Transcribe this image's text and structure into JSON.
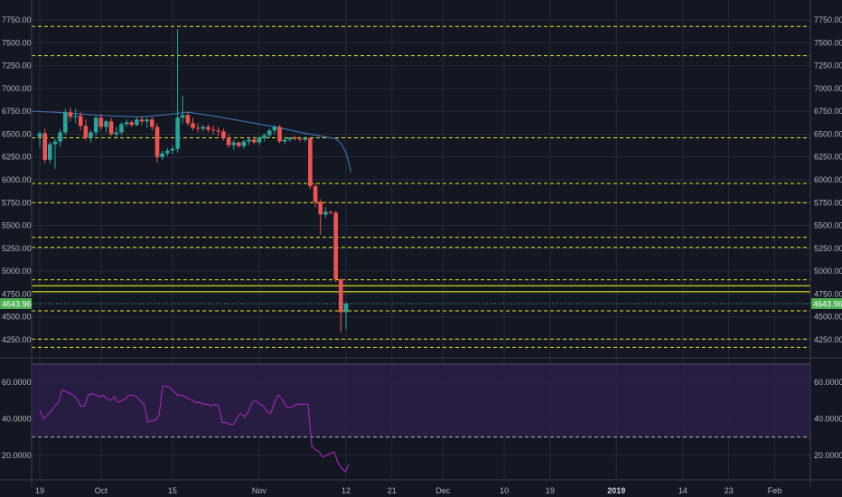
{
  "chart_data": {
    "type": "candlestick",
    "price_axis": {
      "ticks": [
        "7750.00",
        "7500.00",
        "7250.00",
        "7000.00",
        "6750.00",
        "6500.00",
        "6250.00",
        "6000.00",
        "5750.00",
        "5500.00",
        "5250.00",
        "5000.00",
        "4750.00",
        "4500.00",
        "4250.00"
      ],
      "tick_values": [
        7750,
        7500,
        7250,
        7000,
        6750,
        6500,
        6250,
        6000,
        5750,
        5500,
        5250,
        5000,
        4750,
        4500,
        4250
      ],
      "ylim": [
        4070,
        7920
      ]
    },
    "time_axis": {
      "labels": [
        "19",
        "Oct",
        "15",
        "Nov",
        "12",
        "21",
        "Dec",
        "10",
        "19",
        "2019",
        "14",
        "23",
        "Feb"
      ],
      "label_days": [
        0,
        12,
        26,
        43,
        60,
        69,
        79,
        91,
        100,
        113,
        126,
        135,
        144
      ],
      "xlim": [
        -1.6,
        151
      ],
      "bold_label": "2019"
    },
    "current_price": {
      "label": "4643.96",
      "value": 4643.96,
      "color": "#4caf50"
    },
    "horizontal_levels": {
      "color": "#e8e81c",
      "dashed": [
        7680,
        7360,
        6460,
        5960,
        5750,
        5370,
        5260,
        4905,
        4565,
        4255,
        4165
      ],
      "solid": [
        4840,
        4775
      ]
    },
    "colors": {
      "up": "#26a69a",
      "down": "#ef5350",
      "ma": "#3c6fae",
      "rsi": "#9c27b0",
      "rsi_band": "#2a1e46"
    },
    "candles": [
      {
        "o": 6470,
        "h": 6530,
        "l": 6360,
        "c": 6510
      },
      {
        "o": 6510,
        "h": 6560,
        "l": 6180,
        "c": 6220
      },
      {
        "o": 6220,
        "h": 6420,
        "l": 6180,
        "c": 6390
      },
      {
        "o": 6390,
        "h": 6450,
        "l": 6120,
        "c": 6420
      },
      {
        "o": 6420,
        "h": 6560,
        "l": 6360,
        "c": 6520
      },
      {
        "o": 6520,
        "h": 6780,
        "l": 6490,
        "c": 6740
      },
      {
        "o": 6740,
        "h": 6790,
        "l": 6640,
        "c": 6690
      },
      {
        "o": 6690,
        "h": 6780,
        "l": 6620,
        "c": 6700
      },
      {
        "o": 6700,
        "h": 6740,
        "l": 6540,
        "c": 6590
      },
      {
        "o": 6590,
        "h": 6660,
        "l": 6430,
        "c": 6460
      },
      {
        "o": 6460,
        "h": 6540,
        "l": 6410,
        "c": 6520
      },
      {
        "o": 6520,
        "h": 6700,
        "l": 6480,
        "c": 6680
      },
      {
        "o": 6680,
        "h": 6720,
        "l": 6540,
        "c": 6580
      },
      {
        "o": 6580,
        "h": 6660,
        "l": 6520,
        "c": 6640
      },
      {
        "o": 6640,
        "h": 6680,
        "l": 6480,
        "c": 6500
      },
      {
        "o": 6500,
        "h": 6580,
        "l": 6460,
        "c": 6520
      },
      {
        "o": 6520,
        "h": 6630,
        "l": 6490,
        "c": 6610
      },
      {
        "o": 6610,
        "h": 6660,
        "l": 6580,
        "c": 6630
      },
      {
        "o": 6630,
        "h": 6650,
        "l": 6580,
        "c": 6600
      },
      {
        "o": 6600,
        "h": 6690,
        "l": 6590,
        "c": 6660
      },
      {
        "o": 6660,
        "h": 6700,
        "l": 6600,
        "c": 6640
      },
      {
        "o": 6640,
        "h": 6680,
        "l": 6570,
        "c": 6660
      },
      {
        "o": 6660,
        "h": 6690,
        "l": 6540,
        "c": 6580
      },
      {
        "o": 6580,
        "h": 6620,
        "l": 6190,
        "c": 6250
      },
      {
        "o": 6250,
        "h": 6320,
        "l": 6220,
        "c": 6290
      },
      {
        "o": 6290,
        "h": 6350,
        "l": 6260,
        "c": 6320
      },
      {
        "o": 6320,
        "h": 6380,
        "l": 6280,
        "c": 6340
      },
      {
        "o": 6340,
        "h": 7650,
        "l": 6300,
        "c": 6680
      },
      {
        "o": 6680,
        "h": 6920,
        "l": 6620,
        "c": 6710
      },
      {
        "o": 6710,
        "h": 6740,
        "l": 6590,
        "c": 6620
      },
      {
        "o": 6620,
        "h": 6680,
        "l": 6540,
        "c": 6570
      },
      {
        "o": 6570,
        "h": 6620,
        "l": 6520,
        "c": 6560
      },
      {
        "o": 6560,
        "h": 6600,
        "l": 6530,
        "c": 6580
      },
      {
        "o": 6580,
        "h": 6610,
        "l": 6520,
        "c": 6550
      },
      {
        "o": 6550,
        "h": 6590,
        "l": 6500,
        "c": 6540
      },
      {
        "o": 6540,
        "h": 6580,
        "l": 6480,
        "c": 6530
      },
      {
        "o": 6530,
        "h": 6560,
        "l": 6430,
        "c": 6460
      },
      {
        "o": 6460,
        "h": 6500,
        "l": 6350,
        "c": 6380
      },
      {
        "o": 6380,
        "h": 6440,
        "l": 6330,
        "c": 6410
      },
      {
        "o": 6410,
        "h": 6420,
        "l": 6350,
        "c": 6370
      },
      {
        "o": 6370,
        "h": 6440,
        "l": 6340,
        "c": 6420
      },
      {
        "o": 6420,
        "h": 6460,
        "l": 6380,
        "c": 6440
      },
      {
        "o": 6440,
        "h": 6470,
        "l": 6390,
        "c": 6410
      },
      {
        "o": 6410,
        "h": 6480,
        "l": 6380,
        "c": 6460
      },
      {
        "o": 6460,
        "h": 6510,
        "l": 6420,
        "c": 6490
      },
      {
        "o": 6490,
        "h": 6560,
        "l": 6460,
        "c": 6540
      },
      {
        "o": 6540,
        "h": 6600,
        "l": 6500,
        "c": 6580
      },
      {
        "o": 6580,
        "h": 6600,
        "l": 6400,
        "c": 6420
      },
      {
        "o": 6420,
        "h": 6470,
        "l": 6390,
        "c": 6440
      },
      {
        "o": 6440,
        "h": 6470,
        "l": 6420,
        "c": 6460
      },
      {
        "o": 6460,
        "h": 6480,
        "l": 6430,
        "c": 6450
      },
      {
        "o": 6450,
        "h": 6470,
        "l": 6420,
        "c": 6440
      },
      {
        "o": 6440,
        "h": 6470,
        "l": 6420,
        "c": 6455
      },
      {
        "o": 6455,
        "h": 6470,
        "l": 5900,
        "c": 5930
      },
      {
        "o": 5930,
        "h": 5960,
        "l": 5700,
        "c": 5760
      },
      {
        "o": 5760,
        "h": 5790,
        "l": 5400,
        "c": 5620
      },
      {
        "o": 5620,
        "h": 5700,
        "l": 5580,
        "c": 5650
      },
      {
        "o": 5650,
        "h": 5660,
        "l": 5620,
        "c": 5640
      },
      {
        "o": 5640,
        "h": 5660,
        "l": 4880,
        "c": 4910
      },
      {
        "o": 4910,
        "h": 4920,
        "l": 4330,
        "c": 4550
      },
      {
        "o": 4550,
        "h": 4660,
        "l": 4360,
        "c": 4644
      }
    ],
    "moving_average": [
      [
        -1.5,
        6750
      ],
      [
        3,
        6740
      ],
      [
        8,
        6720
      ],
      [
        14,
        6700
      ],
      [
        20,
        6690
      ],
      [
        26,
        6720
      ],
      [
        29,
        6740
      ],
      [
        34,
        6700
      ],
      [
        40,
        6640
      ],
      [
        46,
        6580
      ],
      [
        52,
        6510
      ],
      [
        56,
        6470
      ],
      [
        58,
        6450
      ],
      [
        59,
        6400
      ],
      [
        60,
        6300
      ],
      [
        60.5,
        6200
      ],
      [
        61,
        6080
      ]
    ],
    "rsi": {
      "axis_ticks": [
        "60.0000",
        "40.0000",
        "20.0000"
      ],
      "tick_values": [
        60,
        40,
        20
      ],
      "ylim": [
        7,
        73
      ],
      "band": [
        30,
        70
      ],
      "upper_line": 30,
      "points": [
        45,
        40,
        42,
        44,
        47,
        49,
        56,
        55,
        54,
        53,
        51,
        47,
        47,
        53,
        54,
        53,
        52,
        53,
        51,
        50,
        52,
        49,
        50,
        51,
        53,
        53,
        52,
        50,
        48,
        38,
        39,
        39,
        42,
        58,
        58,
        57,
        55,
        53,
        53,
        52,
        51,
        50,
        49,
        49,
        48,
        48,
        47,
        48,
        47,
        38,
        38,
        37,
        37,
        41,
        43,
        41,
        44,
        49,
        50,
        48,
        47,
        44,
        43,
        49,
        53,
        51,
        47,
        46,
        47,
        48,
        48,
        48,
        48,
        25,
        23,
        22,
        19,
        20,
        21,
        22,
        16,
        13,
        11,
        15
      ]
    }
  }
}
